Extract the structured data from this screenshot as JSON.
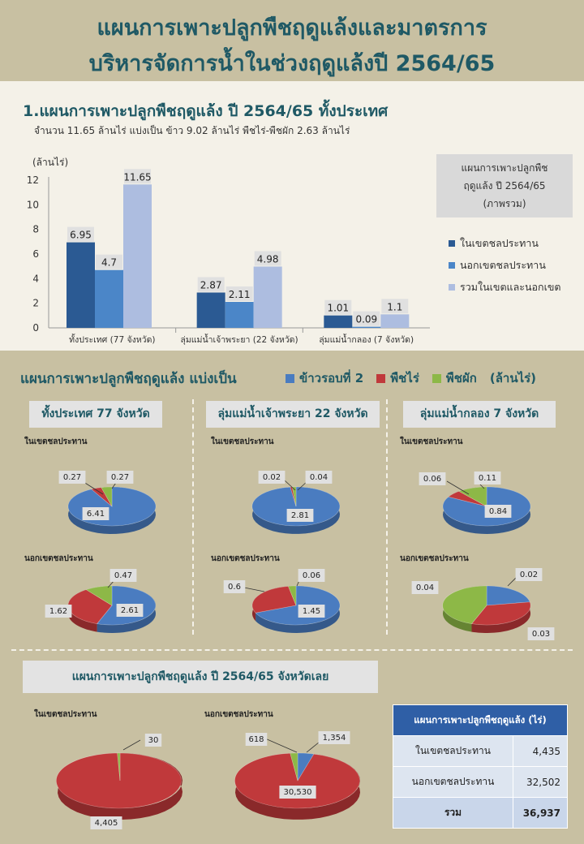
{
  "header": {
    "title_line1": "แผนการเพาะปลูกพืชฤดูแล้งและมาตรการ",
    "title_line2": "บริหารจัดการน้ำในช่วงฤดูแล้งปี  2564/65"
  },
  "section1": {
    "title": "1.แผนการเพาะปลูกพืชฤดูแล้ง ปี 2564/65 ทั้งประเทศ",
    "subtitle": "จำนวน 11.65 ล้านไร่  แบ่งเป็น ข้าว 9.02 ล้านไร่ พืชไร่-พืชผัก 2.63 ล้านไร่",
    "legend_box": [
      "แผนการเพาะปลูกพืช",
      "ฤดูแล้ง ปี 2564/65",
      "(ภาพรวม)"
    ]
  },
  "colors": {
    "dark_blue": "#2b5a93",
    "mid_blue": "#4b86c8",
    "light_blue": "#adbde0",
    "rice": "#4a7cc0",
    "field": "#c0393b",
    "veg": "#8db847",
    "teal": "#1f5965"
  },
  "chart_data": [
    {
      "type": "bar",
      "ylabel": "(ล้านไร่)",
      "ylim": [
        0,
        12
      ],
      "yticks": [
        0,
        2,
        4,
        6,
        8,
        10,
        12
      ],
      "categories": [
        "ทั้งประเทศ (77 จังหวัด)",
        "ลุ่มแม่น้ำเจ้าพระยา (22 จังหวัด)",
        "ลุ่มแม่น้ำกลอง (7 จังหวัด)"
      ],
      "series": [
        {
          "name": "ในเขตชลประทาน",
          "values": [
            6.95,
            2.87,
            1.01
          ],
          "labels": [
            "6.95",
            "2.87",
            "1.01"
          ]
        },
        {
          "name": "นอกเขตชลประทาน",
          "values": [
            4.7,
            2.11,
            0.09
          ],
          "labels": [
            "4.7",
            "2.11",
            "0.09"
          ]
        },
        {
          "name": "รวมในเขตและนอกเขต",
          "values": [
            11.65,
            4.98,
            1.1
          ],
          "labels": [
            "11.65",
            "4.98",
            "1.1"
          ]
        }
      ]
    },
    {
      "type": "pie",
      "title": "แผนการเพาะปลูกพืชฤดูแล้ง แบ่งเป็น",
      "unit": "(ล้านไร่)",
      "legend": [
        "ข้าวรอบที่ 2",
        "พืชไร่",
        "พืชผัก"
      ],
      "regions": [
        {
          "name": "ทั้งประเทศ 77 จังหวัด",
          "pies": [
            {
              "label": "ในเขตชลประทาน",
              "values": [
                6.41,
                0.27,
                0.27
              ],
              "labels": [
                "6.41",
                "0.27",
                "0.27"
              ]
            },
            {
              "label": "นอกเขตชลประทาน",
              "values": [
                2.61,
                1.62,
                0.47
              ],
              "labels": [
                "2.61",
                "1.62",
                "0.47"
              ]
            }
          ]
        },
        {
          "name": "ลุ่มแม่น้ำเจ้าพระยา 22 จังหวัด",
          "pies": [
            {
              "label": "ในเขตชลประทาน",
              "values": [
                2.81,
                0.02,
                0.04
              ],
              "labels": [
                "2.81",
                "0.02",
                "0.04"
              ]
            },
            {
              "label": "นอกเขตชลประทาน",
              "values": [
                1.45,
                0.6,
                0.06
              ],
              "labels": [
                "1.45",
                "0.6",
                "0.06"
              ]
            }
          ]
        },
        {
          "name": "ลุ่มแม่น้ำกลอง 7 จังหวัด",
          "pies": [
            {
              "label": "ในเขตชลประทาน",
              "values": [
                0.84,
                0.06,
                0.11
              ],
              "labels": [
                "0.84",
                "0.06",
                "0.11"
              ]
            },
            {
              "label": "นอกเขตชลประทาน",
              "values": [
                0.02,
                0.03,
                0.04
              ],
              "labels": [
                "0.02",
                "0.03",
                "0.04"
              ]
            }
          ]
        }
      ]
    },
    {
      "type": "pie",
      "title": "แผนการเพาะปลูกพืชฤดูแล้ง ปี 2564/65 จังหวัดเลย",
      "pies": [
        {
          "label": "ในเขตชลประทาน",
          "values": [
            0,
            4405,
            30
          ],
          "labels": [
            "",
            "4,405",
            "30"
          ]
        },
        {
          "label": "นอกเขตชลประทาน",
          "values": [
            1354,
            30530,
            618
          ],
          "labels": [
            "1,354",
            "30,530",
            "618"
          ]
        }
      ]
    },
    {
      "type": "table",
      "header": "แผนการเพาะปลูกพืชฤดูแล้ง (ไร่)",
      "rows": [
        {
          "label": "ในเขตชลประทาน",
          "value": "4,435"
        },
        {
          "label": "นอกเขตชลประทาน",
          "value": "32,502"
        },
        {
          "label": "รวม",
          "value": "36,937"
        }
      ]
    }
  ]
}
